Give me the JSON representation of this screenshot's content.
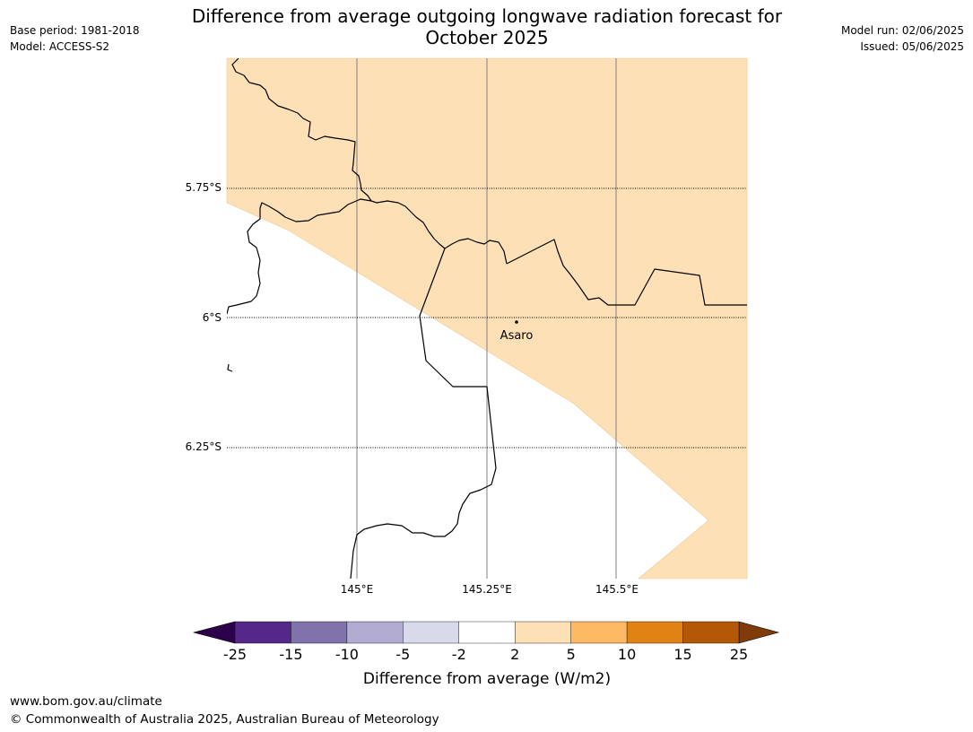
{
  "header": {
    "title_line1": "Difference from average outgoing longwave radiation forecast for",
    "title_line2": "October 2025",
    "base_period": "Base period: 1981-2018",
    "model": "Model: ACCESS-S2",
    "model_run": "Model run: 02/06/2025",
    "issued": "Issued: 05/06/2025"
  },
  "map": {
    "latitude_labels": [
      "5.75°S",
      "6°S",
      "6.25°S"
    ],
    "longitude_labels": [
      "145°E",
      "145.25°E",
      "145.5°E"
    ],
    "location": {
      "name": "Asaro"
    },
    "colors": {
      "positive_anomaly_2_to_5": "#fde0b6",
      "near_average": "#ffffff",
      "boundary": "#000000",
      "gridline": "#808080"
    }
  },
  "colorbar": {
    "title": "Difference from average (W/m2)",
    "ticks": [
      "-25",
      "-15",
      "-10",
      "-5",
      "-2",
      "2",
      "5",
      "10",
      "15",
      "25"
    ],
    "under_color": "#2d004b",
    "over_color": "#7f3b08",
    "bins": [
      {
        "from": "-25",
        "to": "-15",
        "color": "#542788"
      },
      {
        "from": "-15",
        "to": "-10",
        "color": "#8073ac"
      },
      {
        "from": "-10",
        "to": "-5",
        "color": "#b2abd2"
      },
      {
        "from": "-5",
        "to": "-2",
        "color": "#d8daeb"
      },
      {
        "from": "-2",
        "to": "2",
        "color": "#ffffff"
      },
      {
        "from": "2",
        "to": "5",
        "color": "#fee0b6"
      },
      {
        "from": "5",
        "to": "10",
        "color": "#fdb863"
      },
      {
        "from": "10",
        "to": "15",
        "color": "#e08214"
      },
      {
        "from": "15",
        "to": "25",
        "color": "#b35806"
      }
    ]
  },
  "footer": {
    "url": "www.bom.gov.au/climate",
    "copyright": "© Commonwealth of Australia 2025, Australian Bureau of Meteorology"
  }
}
